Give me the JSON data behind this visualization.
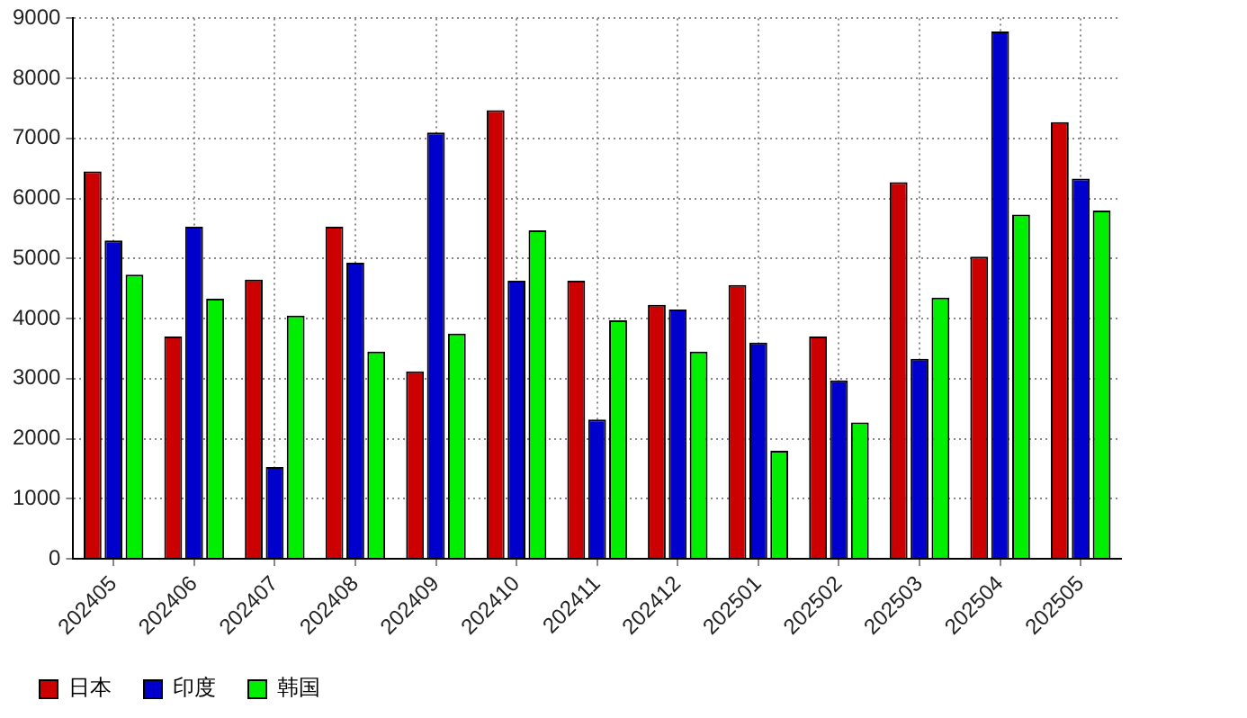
{
  "chart_data": {
    "type": "bar",
    "categories": [
      "202405",
      "202406",
      "202407",
      "202408",
      "202409",
      "202410",
      "202411",
      "202412",
      "202501",
      "202502",
      "202503",
      "202504",
      "202505"
    ],
    "series": [
      {
        "name": "日本",
        "color": "#cc0000",
        "values": [
          6450,
          3700,
          4650,
          5530,
          3120,
          7470,
          4630,
          4230,
          4560,
          3700,
          6270,
          5030,
          7270
        ]
      },
      {
        "name": "印度",
        "color": "#0000cc",
        "values": [
          5300,
          5530,
          1530,
          4930,
          7100,
          4630,
          2320,
          4150,
          3600,
          2970,
          3330,
          8780,
          6330
        ]
      },
      {
        "name": "韩国",
        "color": "#00ee00",
        "values": [
          4730,
          4330,
          4050,
          3450,
          3750,
          5470,
          3970,
          3450,
          1800,
          2270,
          4350,
          5730,
          5800
        ]
      }
    ],
    "ylim": [
      0,
      9000
    ],
    "yticks": [
      0,
      1000,
      2000,
      3000,
      4000,
      5000,
      6000,
      7000,
      8000,
      9000
    ],
    "grid": true,
    "legend": "bottom left"
  }
}
